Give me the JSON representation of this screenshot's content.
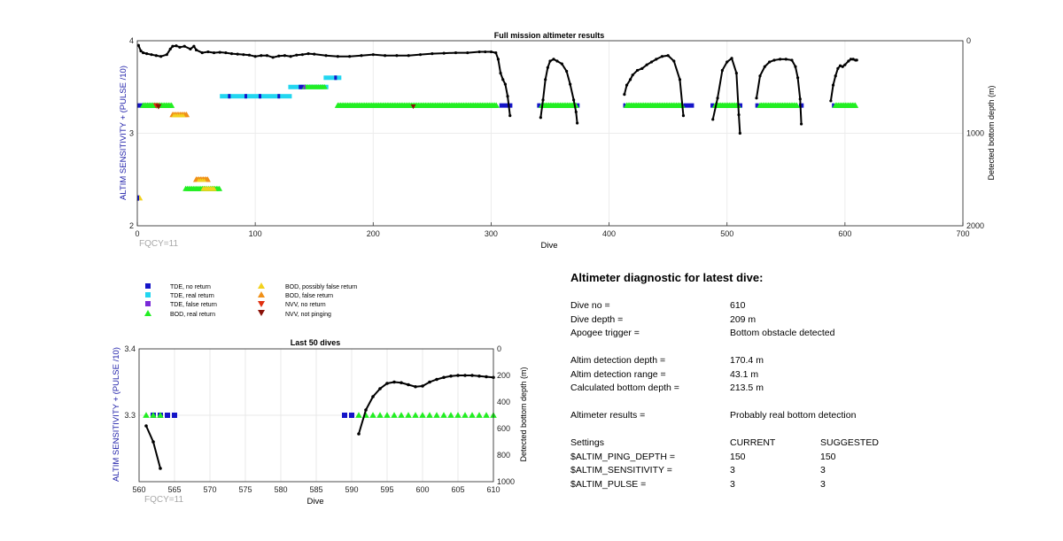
{
  "chart_data": [
    {
      "type": "scatter",
      "title": "Full mission altimeter results",
      "xlabel": "Dive",
      "ylabel": "ALTIM SENSITIVITY + (PULSE /10)",
      "ylabel_right": "Detected bottom depth (m)",
      "annotation": "FQCY=11",
      "xlim": [
        0,
        700
      ],
      "ylim": [
        2,
        4
      ],
      "ylim_right": [
        2000,
        0
      ],
      "x_ticks": [
        "0",
        "100",
        "200",
        "300",
        "400",
        "500",
        "600",
        "700"
      ],
      "y_ticks": [
        "2",
        "3",
        "4"
      ],
      "y_right_ticks": [
        "0",
        "1000",
        "2000"
      ],
      "grid": true,
      "depth_series": [
        {
          "x": [
            1,
            3,
            5,
            8,
            12,
            16,
            20,
            25,
            28,
            30,
            33,
            36,
            40,
            45,
            48,
            50,
            55,
            60,
            65,
            70,
            75,
            80,
            85,
            90,
            95,
            100,
            105,
            110,
            115,
            120,
            125,
            130,
            135,
            140,
            145,
            150,
            160,
            170,
            180,
            190,
            200,
            210,
            220,
            230,
            240,
            250,
            260,
            270,
            280,
            290,
            295,
            300,
            304,
            306,
            308,
            310,
            312,
            314,
            316
          ],
          "y": [
            50,
            110,
            130,
            140,
            150,
            160,
            170,
            150,
            90,
            60,
            55,
            70,
            60,
            90,
            60,
            100,
            130,
            120,
            130,
            125,
            130,
            140,
            145,
            150,
            155,
            170,
            160,
            160,
            180,
            165,
            160,
            170,
            155,
            150,
            140,
            145,
            160,
            170,
            170,
            160,
            150,
            160,
            160,
            160,
            150,
            140,
            135,
            130,
            130,
            120,
            120,
            120,
            130,
            200,
            350,
            420,
            470,
            600,
            810
          ]
        },
        {
          "x": [
            342,
            344,
            346,
            348,
            350,
            353,
            356,
            360,
            364,
            367,
            370,
            372,
            373
          ],
          "y": [
            830,
            640,
            420,
            290,
            220,
            200,
            220,
            250,
            330,
            470,
            640,
            770,
            890
          ]
        },
        {
          "x": [
            413,
            415,
            418,
            420,
            424,
            428,
            432,
            436,
            440,
            445,
            450,
            455,
            460,
            463
          ],
          "y": [
            580,
            480,
            420,
            370,
            320,
            300,
            260,
            230,
            200,
            170,
            160,
            220,
            420,
            810
          ]
        },
        {
          "x": [
            488,
            492,
            496,
            500,
            504,
            508,
            510,
            511
          ],
          "y": [
            850,
            620,
            320,
            230,
            190,
            350,
            800,
            1000
          ]
        },
        {
          "x": [
            525,
            528,
            532,
            536,
            540,
            545,
            550,
            555,
            558,
            560,
            562,
            563
          ],
          "y": [
            620,
            380,
            280,
            230,
            210,
            200,
            200,
            210,
            280,
            400,
            630,
            900
          ]
        },
        {
          "x": [
            588,
            590,
            592,
            594,
            596,
            598,
            600,
            603,
            605,
            607,
            609,
            610
          ],
          "y": [
            650,
            480,
            380,
            300,
            270,
            280,
            260,
            220,
            200,
            200,
            210,
            209
          ]
        }
      ],
      "tde_no_return_segments": [
        [
          0,
          15
        ],
        [
          307,
          318
        ],
        [
          339,
          342
        ],
        [
          372,
          375
        ],
        [
          412,
          414
        ],
        [
          463,
          472
        ],
        [
          486,
          489
        ],
        [
          510,
          513
        ],
        [
          524,
          527
        ],
        [
          561,
          565
        ],
        [
          589,
          591
        ]
      ],
      "bod_real_return_segments": [
        [
          5,
          30
        ],
        [
          170,
          305
        ],
        [
          343,
          372
        ],
        [
          415,
          462
        ],
        [
          490,
          510
        ],
        [
          528,
          560
        ],
        [
          592,
          610
        ]
      ],
      "tde_real_return_segment_a": [
        70,
        131
      ],
      "tde_real_return_segment_b": [
        128,
        162
      ],
      "tde_real_return_segment_c": [
        158,
        173
      ],
      "bod_low_segment": [
        41,
        70
      ],
      "bod_possibly_false_segment": [
        50,
        60
      ]
    },
    {
      "type": "scatter",
      "title": "Last 50 dives",
      "xlabel": "Dive",
      "ylabel": "ALTIM SENSITIVITY + (PULSE /10)",
      "ylabel_right": "Detected bottom depth (m)",
      "annotation": "FQCY=11",
      "xlim": [
        560,
        610
      ],
      "ylim": [
        3.2,
        3.4
      ],
      "ylim_right": [
        1000,
        0
      ],
      "x_ticks": [
        "560",
        "565",
        "570",
        "575",
        "580",
        "585",
        "590",
        "595",
        "600",
        "605",
        "610"
      ],
      "y_ticks": [
        "3.3",
        "3.4"
      ],
      "y_right_ticks": [
        "0",
        "200",
        "400",
        "600",
        "800",
        "1000"
      ],
      "grid": true,
      "depth_series": [
        {
          "x": [
            561,
            562,
            563
          ],
          "y": [
            580,
            700,
            900
          ]
        },
        {
          "x": [
            591,
            592,
            593,
            594,
            595,
            596,
            597,
            598,
            599,
            600,
            601,
            602,
            603,
            604,
            605,
            606,
            607,
            608,
            609,
            610
          ],
          "y": [
            640,
            460,
            360,
            300,
            260,
            250,
            255,
            270,
            285,
            280,
            250,
            230,
            215,
            205,
            200,
            200,
            200,
            205,
            210,
            215
          ]
        }
      ],
      "tde_no_return_dives": [
        562,
        563,
        564,
        565,
        589,
        590
      ],
      "bod_real_return_dives": [
        561,
        562,
        563,
        591,
        592,
        593,
        594,
        595,
        596,
        597,
        598,
        599,
        600,
        601,
        602,
        603,
        604,
        605,
        606,
        607,
        608,
        609,
        610
      ],
      "marker_value": 3.3
    }
  ],
  "legend": [
    {
      "label": "TDE, no return",
      "color": "#1515c8",
      "shape": "square"
    },
    {
      "label": "TDE, real return",
      "color": "#22d6f0",
      "shape": "square"
    },
    {
      "label": "TDE, false return",
      "color": "#7a2ad8",
      "shape": "square"
    },
    {
      "label": "BOD, real return",
      "color": "#22ee22",
      "shape": "triangle-up"
    },
    {
      "label": "BOD, possibly false return",
      "color": "#f2d21e",
      "shape": "triangle-up"
    },
    {
      "label": "BOD, false return",
      "color": "#f09018",
      "shape": "triangle-up"
    },
    {
      "label": "NVV, no return",
      "color": "#e03010",
      "shape": "triangle-down"
    },
    {
      "label": "NVV, not pinging",
      "color": "#8a1208",
      "shape": "triangle-down"
    }
  ],
  "diagnostic": {
    "title": "Altimeter diagnostic for latest dive:",
    "dive_no_label": "Dive no =",
    "dive_no": "610",
    "dive_depth_label": "Dive depth =",
    "dive_depth": "209 m",
    "apogee_label": "Apogee trigger =",
    "apogee": "Bottom obstacle detected",
    "altim_depth_label": "Altim detection depth =",
    "altim_depth": "170.4 m",
    "altim_range_label": "Altim detection range =",
    "altim_range": "43.1 m",
    "calc_depth_label": "Calculated bottom depth =",
    "calc_depth": "213.5 m",
    "results_label": "Altimeter results =",
    "results": "Probably real bottom detection",
    "settings_label": "Settings",
    "current_label": "CURRENT",
    "suggested_label": "SUGGESTED",
    "ping_depth_label": "$ALTIM_PING_DEPTH =",
    "ping_depth_current": "150",
    "ping_depth_suggested": "150",
    "sensitivity_label": "$ALTIM_SENSITIVITY =",
    "sensitivity_current": "3",
    "sensitivity_suggested": "3",
    "pulse_label": "$ALTIM_PULSE =",
    "pulse_current": "3",
    "pulse_suggested": "3"
  }
}
